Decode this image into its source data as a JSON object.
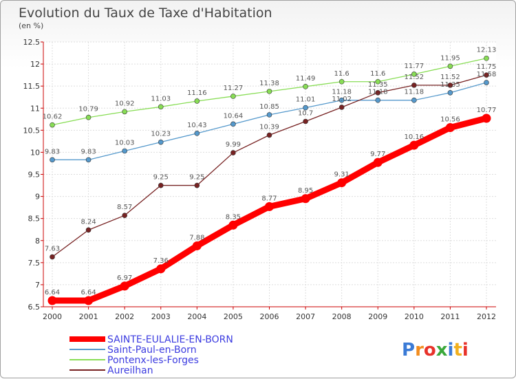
{
  "chart_data": {
    "type": "line",
    "title": "Evolution du Taux de Taxe d'Habitation",
    "subtitle": "(en %)",
    "x": [
      "2000",
      "2001",
      "2002",
      "2003",
      "2004",
      "2005",
      "2006",
      "2007",
      "2008",
      "2009",
      "2010",
      "2011",
      "2012"
    ],
    "ylim": [
      6.5,
      12.5
    ],
    "yticks": [
      6.5,
      7,
      7.5,
      8,
      8.5,
      9,
      9.5,
      10,
      10.5,
      11,
      11.5,
      12,
      12.5
    ],
    "ytick_labels": [
      "6.5",
      "7",
      "7.5",
      "8",
      "8.5",
      "9",
      "9.5",
      "10",
      "10.5",
      "11",
      "11.5",
      "12",
      "12.5"
    ],
    "grid": true,
    "legend_position": "bottom-left",
    "series": [
      {
        "name": "SAINTE-EULALIE-EN-BORN",
        "color": "#ff0000",
        "values": [
          6.64,
          6.64,
          6.97,
          7.36,
          7.88,
          8.35,
          8.77,
          8.95,
          9.31,
          9.77,
          10.16,
          10.56,
          10.77
        ],
        "labels": [
          "6.64",
          "6.64",
          "6.97",
          "7.36",
          "7.88",
          "8.35",
          "8.77",
          "8.95",
          "9.31",
          "9.77",
          "10.16",
          "10.56",
          "10.77"
        ]
      },
      {
        "name": "Saint-Paul-en-Born",
        "color": "#5599cc",
        "values": [
          9.83,
          9.83,
          10.03,
          10.23,
          10.43,
          10.64,
          10.85,
          11.01,
          11.18,
          11.18,
          11.18,
          11.35,
          11.58
        ],
        "labels": [
          "9.83",
          "9.83",
          "10.03",
          "10.23",
          "10.43",
          "10.64",
          "10.85",
          "11.01",
          "11.18",
          "11.18",
          "11.18",
          "11.35",
          "11.58"
        ]
      },
      {
        "name": "Pontenx-les-Forges",
        "color": "#88dd55",
        "values": [
          10.62,
          10.79,
          10.92,
          11.03,
          11.16,
          11.27,
          11.38,
          11.49,
          11.6,
          11.6,
          11.77,
          11.95,
          12.13
        ],
        "labels": [
          "10.62",
          "10.79",
          "10.92",
          "11.03",
          "11.16",
          "11.27",
          "11.38",
          "11.49",
          "11.6",
          "11.6",
          "11.77",
          "11.95",
          "12.13"
        ]
      },
      {
        "name": "Aureilhan",
        "color": "#772222",
        "values": [
          7.63,
          8.24,
          8.57,
          9.25,
          9.25,
          9.99,
          10.39,
          10.7,
          11.02,
          11.35,
          11.52,
          11.52,
          11.75
        ],
        "labels": [
          "7.63",
          "8.24",
          "8.57",
          "9.25",
          "9.25",
          "9.99",
          "10.39",
          "10.7",
          "11.02",
          "11.35",
          "11.52",
          "11.52",
          "11.75"
        ]
      }
    ]
  },
  "logo": {
    "text": "Proxiti"
  }
}
